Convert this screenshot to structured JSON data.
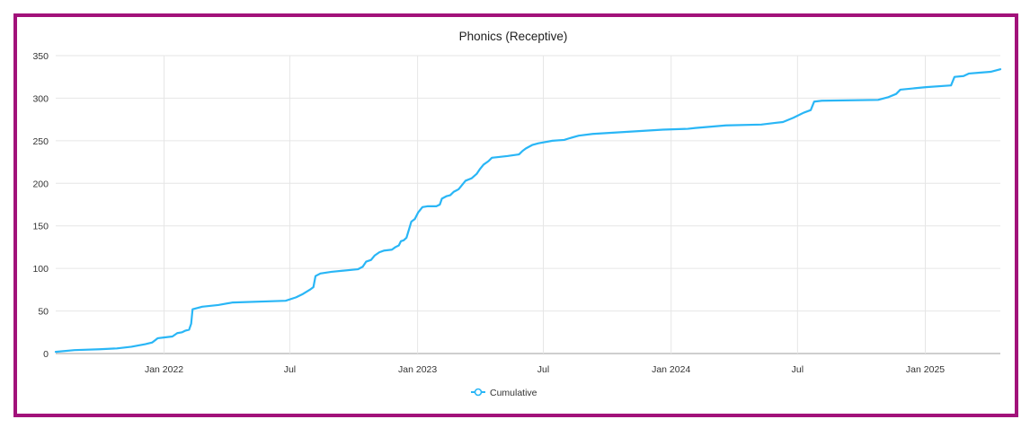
{
  "chart_data": {
    "type": "line",
    "title": "Phonics (Receptive)",
    "xlabel": "",
    "ylabel": "",
    "ylim": [
      0,
      350
    ],
    "xlim": [
      "2021-07-29",
      "2025-04-19"
    ],
    "yticks": [
      0,
      50,
      100,
      150,
      200,
      250,
      300,
      350
    ],
    "xticks": [
      {
        "date": "2022-01-01",
        "label": "Jan 2022"
      },
      {
        "date": "2022-07-01",
        "label": "Jul"
      },
      {
        "date": "2023-01-01",
        "label": "Jan 2023"
      },
      {
        "date": "2023-07-01",
        "label": "Jul"
      },
      {
        "date": "2024-01-01",
        "label": "Jan 2024"
      },
      {
        "date": "2024-07-01",
        "label": "Jul"
      },
      {
        "date": "2025-01-01",
        "label": "Jan 2025"
      }
    ],
    "grid": true,
    "legend_position": "bottom",
    "series": [
      {
        "name": "Cumulative",
        "color": "#29b6f6",
        "points": [
          [
            "2021-07-29",
            2
          ],
          [
            "2021-08-25",
            4
          ],
          [
            "2021-09-30",
            5
          ],
          [
            "2021-10-25",
            6
          ],
          [
            "2021-11-15",
            8
          ],
          [
            "2021-12-05",
            11
          ],
          [
            "2021-12-15",
            13
          ],
          [
            "2021-12-23",
            18
          ],
          [
            "2022-01-02",
            19
          ],
          [
            "2022-01-13",
            20
          ],
          [
            "2022-01-20",
            24
          ],
          [
            "2022-01-27",
            25
          ],
          [
            "2022-02-01",
            27
          ],
          [
            "2022-02-06",
            28
          ],
          [
            "2022-02-09",
            35
          ],
          [
            "2022-02-11",
            52
          ],
          [
            "2022-02-25",
            55
          ],
          [
            "2022-03-20",
            57
          ],
          [
            "2022-04-10",
            60
          ],
          [
            "2022-06-25",
            62
          ],
          [
            "2022-07-10",
            66
          ],
          [
            "2022-07-20",
            70
          ],
          [
            "2022-07-30",
            75
          ],
          [
            "2022-08-04",
            78
          ],
          [
            "2022-08-07",
            91
          ],
          [
            "2022-08-14",
            94
          ],
          [
            "2022-08-30",
            96
          ],
          [
            "2022-10-07",
            99
          ],
          [
            "2022-10-14",
            102
          ],
          [
            "2022-10-19",
            108
          ],
          [
            "2022-10-26",
            110
          ],
          [
            "2022-10-31",
            115
          ],
          [
            "2022-11-07",
            119
          ],
          [
            "2022-11-14",
            121
          ],
          [
            "2022-11-25",
            122
          ],
          [
            "2022-11-30",
            125
          ],
          [
            "2022-12-05",
            127
          ],
          [
            "2022-12-08",
            132
          ],
          [
            "2022-12-12",
            133
          ],
          [
            "2022-12-16",
            136
          ],
          [
            "2022-12-23",
            155
          ],
          [
            "2022-12-28",
            158
          ],
          [
            "2023-01-02",
            166
          ],
          [
            "2023-01-08",
            172
          ],
          [
            "2023-01-15",
            173
          ],
          [
            "2023-01-28",
            173
          ],
          [
            "2023-02-02",
            175
          ],
          [
            "2023-02-05",
            182
          ],
          [
            "2023-02-12",
            185
          ],
          [
            "2023-02-17",
            186
          ],
          [
            "2023-02-22",
            190
          ],
          [
            "2023-03-01",
            193
          ],
          [
            "2023-03-06",
            198
          ],
          [
            "2023-03-11",
            203
          ],
          [
            "2023-03-20",
            206
          ],
          [
            "2023-03-27",
            211
          ],
          [
            "2023-04-01",
            217
          ],
          [
            "2023-04-06",
            222
          ],
          [
            "2023-04-13",
            226
          ],
          [
            "2023-04-18",
            230
          ],
          [
            "2023-05-10",
            232
          ],
          [
            "2023-05-27",
            234
          ],
          [
            "2023-06-01",
            238
          ],
          [
            "2023-06-06",
            241
          ],
          [
            "2023-06-15",
            245
          ],
          [
            "2023-06-24",
            247
          ],
          [
            "2023-07-14",
            250
          ],
          [
            "2023-07-31",
            251
          ],
          [
            "2023-08-08",
            253
          ],
          [
            "2023-08-21",
            256
          ],
          [
            "2023-09-10",
            258
          ],
          [
            "2023-12-20",
            263
          ],
          [
            "2024-01-25",
            264
          ],
          [
            "2024-02-05",
            265
          ],
          [
            "2024-03-20",
            268
          ],
          [
            "2024-05-10",
            269
          ],
          [
            "2024-05-30",
            271
          ],
          [
            "2024-06-10",
            272
          ],
          [
            "2024-06-25",
            277
          ],
          [
            "2024-07-10",
            283
          ],
          [
            "2024-07-20",
            286
          ],
          [
            "2024-07-25",
            296
          ],
          [
            "2024-08-05",
            297
          ],
          [
            "2024-10-25",
            298
          ],
          [
            "2024-11-08",
            301
          ],
          [
            "2024-11-20",
            305
          ],
          [
            "2024-11-26",
            310
          ],
          [
            "2025-01-02",
            313
          ],
          [
            "2025-02-07",
            315
          ],
          [
            "2025-02-12",
            325
          ],
          [
            "2025-02-25",
            326
          ],
          [
            "2025-03-05",
            329
          ],
          [
            "2025-03-20",
            330
          ],
          [
            "2025-04-05",
            331
          ],
          [
            "2025-04-19",
            334
          ]
        ]
      }
    ]
  }
}
